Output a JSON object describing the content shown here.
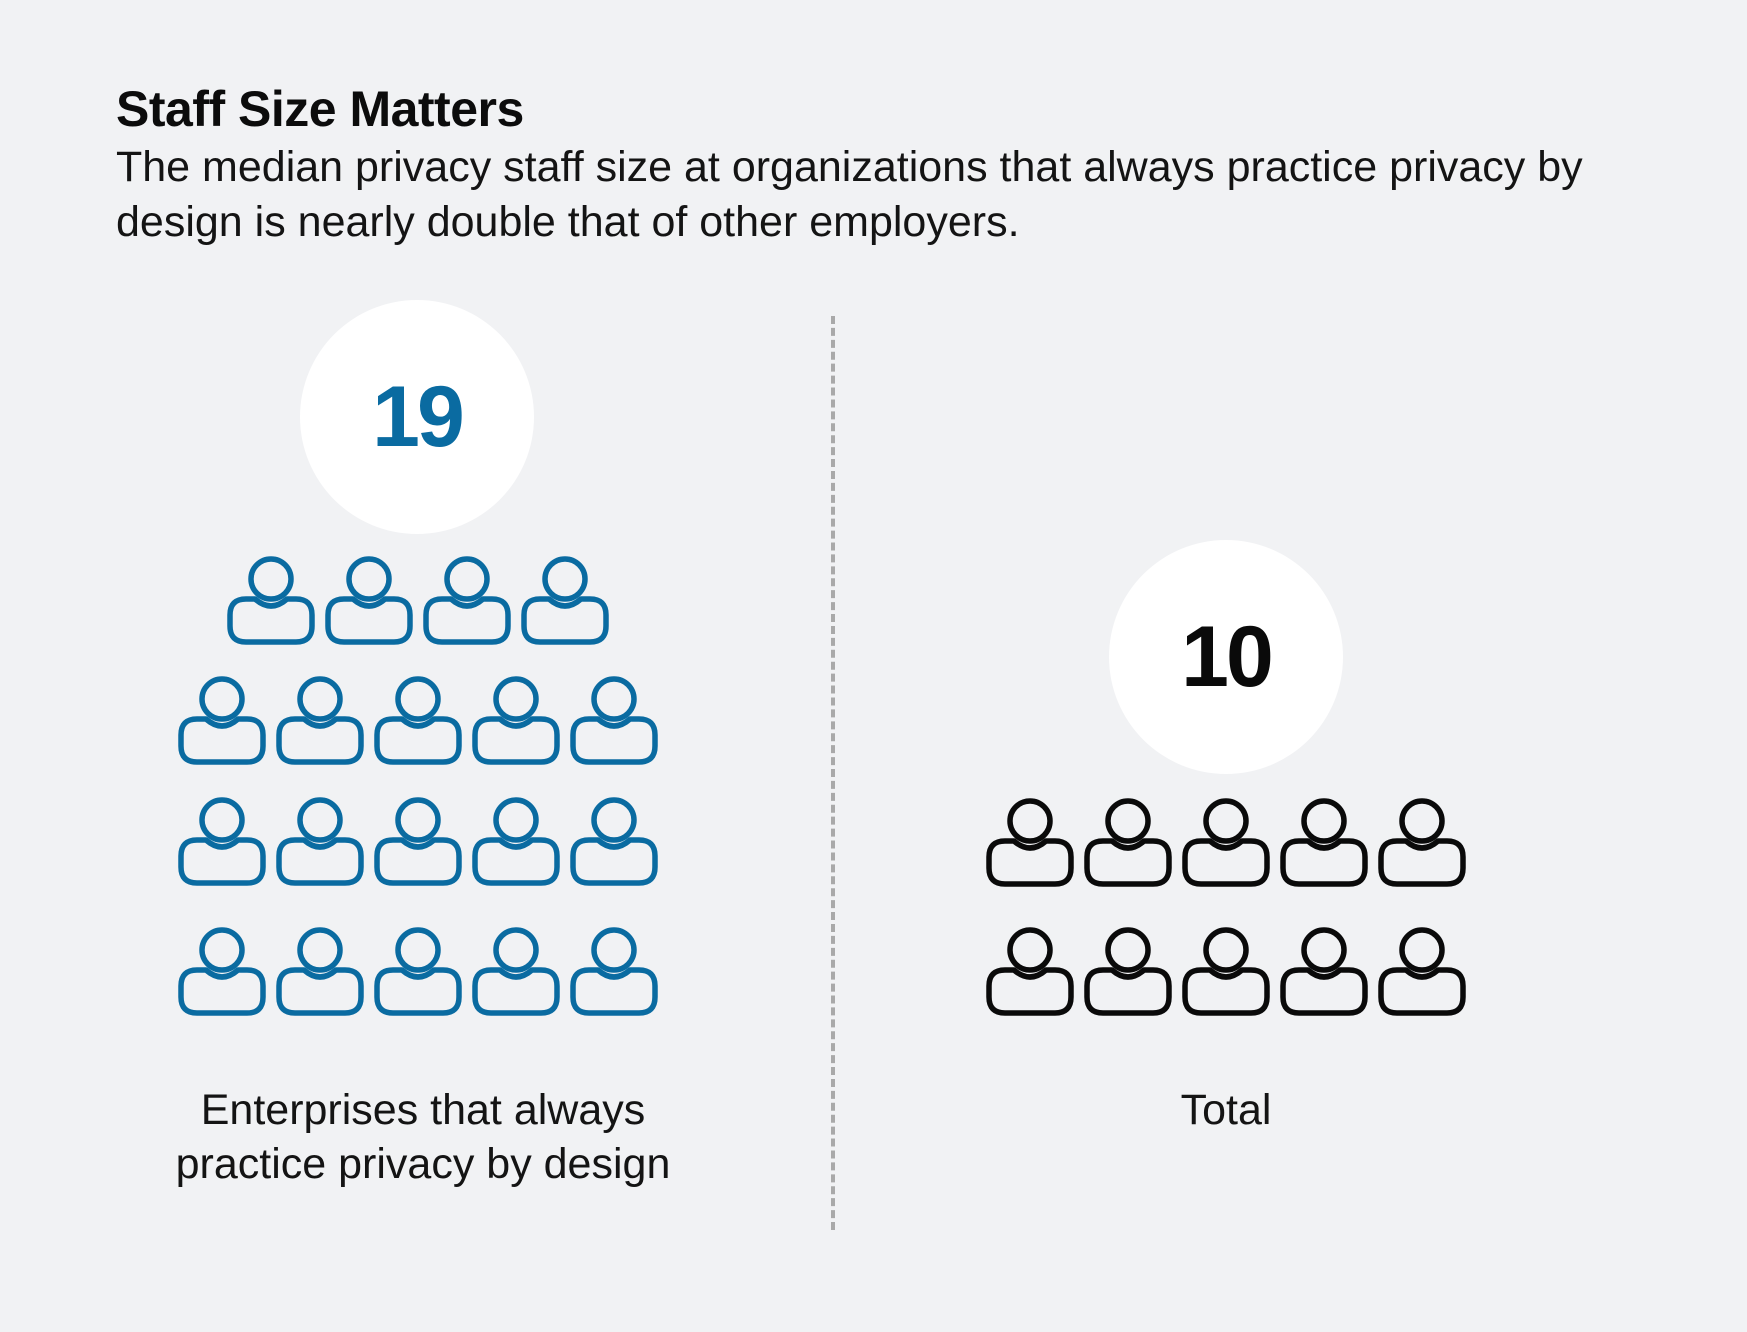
{
  "header": {
    "title": "Staff Size Matters",
    "subtitle": "The median privacy staff size at organizations that always practice privacy by design is nearly double that of other employers."
  },
  "chart_data": {
    "type": "pictogram",
    "categories": [
      "Enterprises that always practice privacy by design",
      "Total"
    ],
    "values": [
      19,
      10
    ],
    "colors": [
      "#0a6ba1",
      "#0a0a0a"
    ],
    "icon": "person-icon",
    "groups": [
      {
        "value_label": "19",
        "label": "Enterprises that always practice privacy by design",
        "value": 19,
        "color": "#0a6ba1"
      },
      {
        "value_label": "10",
        "label": "Total",
        "value": 10,
        "color": "#0a0a0a"
      }
    ]
  }
}
